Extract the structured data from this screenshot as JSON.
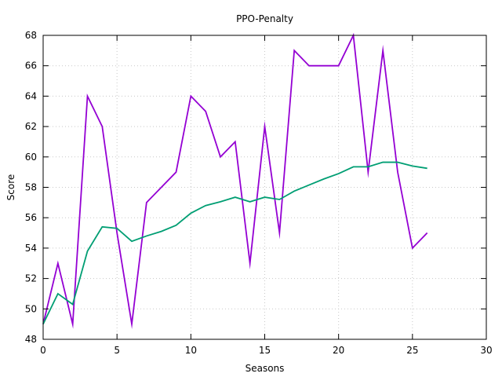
{
  "chart_data": {
    "type": "line",
    "title": "PPO-Penalty",
    "xlabel": "Seasons",
    "ylabel": "Score",
    "xlim": [
      0,
      30
    ],
    "ylim": [
      48,
      68
    ],
    "xticks": [
      0,
      5,
      10,
      15,
      20,
      25,
      30
    ],
    "yticks": [
      48,
      50,
      52,
      54,
      56,
      58,
      60,
      62,
      64,
      66,
      68
    ],
    "grid": true,
    "legend": "none",
    "series": [
      {
        "color": "#9400d3",
        "x": [
          0,
          1,
          2,
          3,
          4,
          5,
          6,
          7,
          8,
          9,
          10,
          11,
          12,
          13,
          14,
          15,
          16,
          17,
          18,
          19,
          20,
          21,
          22,
          23,
          24,
          25,
          26
        ],
        "values": [
          49,
          53,
          49,
          64,
          62,
          55,
          49,
          57,
          58,
          59,
          64,
          63,
          60,
          61,
          53,
          62,
          55,
          67,
          66,
          66,
          66,
          68,
          59,
          67,
          59,
          54,
          55
        ]
      },
      {
        "color": "#009e73",
        "x": [
          0,
          1,
          2,
          3,
          4,
          5,
          6,
          7,
          8,
          9,
          10,
          11,
          12,
          13,
          14,
          15,
          16,
          17,
          18,
          19,
          20,
          21,
          22,
          23,
          24,
          25,
          26
        ],
        "values": [
          49,
          51,
          50.3,
          53.8,
          55.4,
          55.3,
          54.45,
          54.8,
          55.1,
          55.5,
          56.3,
          56.8,
          57.05,
          57.35,
          57.05,
          57.35,
          57.2,
          57.75,
          58.15,
          58.55,
          58.9,
          59.35,
          59.35,
          59.65,
          59.65,
          59.4,
          59.25
        ]
      }
    ]
  }
}
